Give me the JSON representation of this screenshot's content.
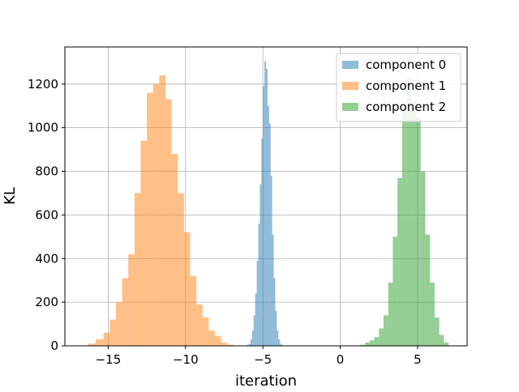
{
  "chart_data": {
    "type": "histogram",
    "xlabel": "iteration",
    "ylabel": "KL",
    "xlim": [
      -17.8,
      8.2
    ],
    "ylim": [
      0,
      1370
    ],
    "xticks": [
      -15,
      -10,
      -5,
      0,
      5
    ],
    "xtick_labels": [
      "−15",
      "−10",
      "−5",
      "0",
      "5"
    ],
    "yticks": [
      0,
      200,
      400,
      600,
      800,
      1000,
      1200
    ],
    "grid": true,
    "legend_position": "upper right",
    "series": [
      {
        "name": "component 0",
        "color": "#1f77b4",
        "alpha": 0.5,
        "bins": [
          [
            -6.0,
            -5.9,
            5
          ],
          [
            -5.9,
            -5.8,
            10
          ],
          [
            -5.8,
            -5.7,
            30
          ],
          [
            -5.7,
            -5.6,
            70
          ],
          [
            -5.6,
            -5.5,
            140
          ],
          [
            -5.5,
            -5.4,
            240
          ],
          [
            -5.4,
            -5.3,
            390
          ],
          [
            -5.3,
            -5.2,
            560
          ],
          [
            -5.2,
            -5.1,
            740
          ],
          [
            -5.1,
            -5.0,
            950
          ],
          [
            -5.0,
            -4.9,
            1190
          ],
          [
            -4.9,
            -4.8,
            1305
          ],
          [
            -4.8,
            -4.7,
            1270
          ],
          [
            -4.7,
            -4.6,
            1100
          ],
          [
            -4.6,
            -4.5,
            1020
          ],
          [
            -4.5,
            -4.4,
            780
          ],
          [
            -4.4,
            -4.3,
            510
          ],
          [
            -4.3,
            -4.2,
            310
          ],
          [
            -4.2,
            -4.1,
            160
          ],
          [
            -4.1,
            -4.0,
            70
          ],
          [
            -4.0,
            -3.9,
            30
          ],
          [
            -3.9,
            -3.8,
            10
          ],
          [
            -3.8,
            -3.7,
            5
          ]
        ]
      },
      {
        "name": "component 1",
        "color": "#ff7f0e",
        "alpha": 0.5,
        "bins": [
          [
            -16.3,
            -15.8,
            10
          ],
          [
            -15.8,
            -15.3,
            30
          ],
          [
            -15.3,
            -14.9,
            60
          ],
          [
            -14.9,
            -14.5,
            120
          ],
          [
            -14.5,
            -14.1,
            200
          ],
          [
            -14.1,
            -13.7,
            310
          ],
          [
            -13.7,
            -13.3,
            420
          ],
          [
            -13.3,
            -12.9,
            700
          ],
          [
            -12.9,
            -12.5,
            940
          ],
          [
            -12.5,
            -12.1,
            1160
          ],
          [
            -12.1,
            -11.7,
            1200
          ],
          [
            -11.7,
            -11.3,
            1240
          ],
          [
            -11.3,
            -10.9,
            1130
          ],
          [
            -10.9,
            -10.5,
            880
          ],
          [
            -10.5,
            -10.1,
            700
          ],
          [
            -10.1,
            -9.7,
            520
          ],
          [
            -9.7,
            -9.3,
            320
          ],
          [
            -9.3,
            -8.9,
            190
          ],
          [
            -8.9,
            -8.5,
            130
          ],
          [
            -8.5,
            -8.1,
            70
          ],
          [
            -8.1,
            -7.7,
            45
          ],
          [
            -7.7,
            -7.3,
            15
          ],
          [
            -7.3,
            -6.9,
            5
          ]
        ]
      },
      {
        "name": "component 2",
        "color": "#2ca02c",
        "alpha": 0.5,
        "bins": [
          [
            1.3,
            1.6,
            5
          ],
          [
            1.6,
            1.9,
            15
          ],
          [
            1.9,
            2.2,
            25
          ],
          [
            2.2,
            2.5,
            40
          ],
          [
            2.5,
            2.8,
            80
          ],
          [
            2.8,
            3.1,
            140
          ],
          [
            3.1,
            3.4,
            290
          ],
          [
            3.4,
            3.7,
            500
          ],
          [
            3.7,
            4.0,
            770
          ],
          [
            4.0,
            4.3,
            1100
          ],
          [
            4.3,
            4.6,
            1230
          ],
          [
            4.6,
            4.9,
            1120
          ],
          [
            4.9,
            5.2,
            1050
          ],
          [
            5.2,
            5.5,
            800
          ],
          [
            5.5,
            5.8,
            510
          ],
          [
            5.8,
            6.1,
            290
          ],
          [
            6.1,
            6.4,
            130
          ],
          [
            6.4,
            6.7,
            50
          ],
          [
            6.7,
            7.0,
            15
          ]
        ]
      }
    ]
  }
}
